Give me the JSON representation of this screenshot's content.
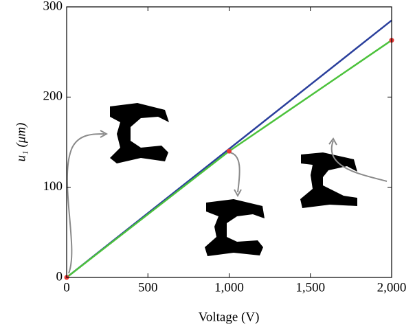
{
  "chart_data": {
    "type": "line",
    "xlabel": "Voltage (V)",
    "ylabel": "u₁ (μm)",
    "xlim": [
      0,
      2000
    ],
    "ylim": [
      0,
      300
    ],
    "xticks": [
      0,
      500,
      {
        "value": 1000,
        "label": "1,000"
      },
      {
        "value": 1500,
        "label": "1,500"
      },
      {
        "value": 2000,
        "label": "2,000"
      }
    ],
    "yticks": [
      0,
      100,
      200,
      300
    ],
    "series": [
      {
        "color": "#2a3f9c",
        "x": [
          0,
          2000
        ],
        "values": [
          0,
          285
        ]
      },
      {
        "color": "#4cc23c",
        "x": [
          0,
          1000,
          2000
        ],
        "values": [
          0,
          140,
          263
        ],
        "marker_color": "#e53935"
      }
    ]
  }
}
